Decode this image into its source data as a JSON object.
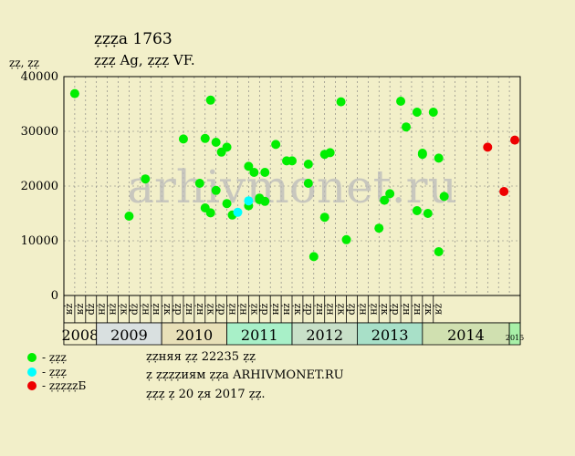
{
  "header": {
    "title": "ẓẓẓa 1763",
    "subtitle": "ẓẓẓ Ag, ẓẓẓ VF."
  },
  "chart_data": {
    "type": "scatter",
    "title": "ẓẓẓa 1763",
    "subtitle": "ẓẓẓ Ag, ẓẓẓ VF.",
    "ylabel": "ẓẓ, ẓẓ",
    "ylim": [
      0,
      40000
    ],
    "yticks": [
      0,
      10000,
      20000,
      30000,
      40000
    ],
    "grid": "dashed",
    "x_time_range": [
      "2008-01",
      "2015-01"
    ],
    "years": [
      {
        "label": "2008",
        "start": "2008-01",
        "end": "2008-07",
        "color": "#f2efc9"
      },
      {
        "label": "2009",
        "start": "2008-07",
        "end": "2009-07",
        "color": "#d9e0e0"
      },
      {
        "label": "2010",
        "start": "2009-07",
        "end": "2010-07",
        "color": "#e8e0b8"
      },
      {
        "label": "2011",
        "start": "2010-07",
        "end": "2011-07",
        "color": "#a8f0c8"
      },
      {
        "label": "2012",
        "start": "2011-07",
        "end": "2012-07",
        "color": "#c8e0c8"
      },
      {
        "label": "2013",
        "start": "2012-07",
        "end": "2013-07",
        "color": "#a8e0c8"
      },
      {
        "label": "2014",
        "start": "2013-07",
        "end": "2014-11",
        "color": "#d0e0b0"
      },
      {
        "label": "2015",
        "start": "2014-11",
        "end": "2015-01",
        "color": "#a8f0a8"
      }
    ],
    "month_labels": [
      "ẓя",
      "ẓя",
      "ẓр",
      "ẓн",
      "ẓн",
      "ẓк",
      "ẓр",
      "ẓн",
      "ẓн",
      "ẓк",
      "ẓр",
      "ẓн",
      "ẓн",
      "ẓк",
      "ẓр",
      "ẓн",
      "ẓн",
      "ẓк",
      "ẓр",
      "ẓн",
      "ẓн",
      "ẓк",
      "ẓр",
      "ẓн",
      "ẓн",
      "ẓк",
      "ẓр",
      "ẓн",
      "ẓн",
      "ẓк",
      "ẓр",
      "ẓн",
      "ẓн",
      "ẓк",
      "ẓя"
    ],
    "series": [
      {
        "name": "ẓẓẓ",
        "color": "#00ee00",
        "points": [
          [
            "2008-03",
            36900
          ],
          [
            "2009-01",
            14500
          ],
          [
            "2009-04",
            21300
          ],
          [
            "2009-11",
            28600
          ],
          [
            "2010-02",
            20500
          ],
          [
            "2010-03",
            16000
          ],
          [
            "2010-03",
            28700
          ],
          [
            "2010-04",
            35700
          ],
          [
            "2010-04",
            15100
          ],
          [
            "2010-05",
            28000
          ],
          [
            "2010-05",
            19200
          ],
          [
            "2010-06",
            26200
          ],
          [
            "2010-07",
            27100
          ],
          [
            "2010-07",
            16800
          ],
          [
            "2010-08",
            14700
          ],
          [
            "2010-11",
            23600
          ],
          [
            "2010-11",
            16400
          ],
          [
            "2010-12",
            22500
          ],
          [
            "2011-01",
            17800
          ],
          [
            "2011-01",
            17500
          ],
          [
            "2011-02",
            22500
          ],
          [
            "2011-02",
            17200
          ],
          [
            "2011-04",
            27600
          ],
          [
            "2011-06",
            24600
          ],
          [
            "2011-07",
            24600
          ],
          [
            "2011-10",
            24000
          ],
          [
            "2011-10",
            20500
          ],
          [
            "2011-11",
            7100
          ],
          [
            "2012-01",
            25800
          ],
          [
            "2012-01",
            14300
          ],
          [
            "2012-02",
            26100
          ],
          [
            "2012-04",
            35400
          ],
          [
            "2012-05",
            10200
          ],
          [
            "2012-11",
            12300
          ],
          [
            "2012-12",
            17400
          ],
          [
            "2013-01",
            18600
          ],
          [
            "2013-03",
            35500
          ],
          [
            "2013-04",
            30800
          ],
          [
            "2013-06",
            33500
          ],
          [
            "2013-06",
            15500
          ],
          [
            "2013-07",
            25800
          ],
          [
            "2013-07",
            26000
          ],
          [
            "2013-08",
            15000
          ],
          [
            "2013-09",
            33500
          ],
          [
            "2013-10",
            8000
          ],
          [
            "2013-10",
            25100
          ],
          [
            "2013-11",
            18100
          ]
        ]
      },
      {
        "name": "ẓẓẓ",
        "color": "#00ffff",
        "points": [
          [
            "2010-09",
            15200
          ],
          [
            "2010-11",
            17300
          ]
        ]
      },
      {
        "name": "ẓẓẓẓẓБ",
        "color": "#ee0000",
        "points": [
          [
            "2014-07",
            27100
          ],
          [
            "2014-10",
            19000
          ],
          [
            "2014-12",
            28400
          ]
        ]
      }
    ],
    "watermark": "arhivmonet.ru",
    "legend_position": "bottom-left"
  },
  "legend": [
    {
      "label": "- ẓẓẓ",
      "color": "#00ee00"
    },
    {
      "label": "- ẓẓẓ",
      "color": "#00ffff"
    },
    {
      "label": "- ẓẓẓẓẓБ",
      "color": "#ee0000"
    }
  ],
  "info": {
    "line1": "ẓẓняя ẓẓ 22235 ẓẓ",
    "line2": "ẓ ẓẓẓẓиям ẓẓa ARHIVMONET.RU",
    "line3": "ẓẓẓ ẓ 20 ẓя 2017 ẓẓ."
  }
}
